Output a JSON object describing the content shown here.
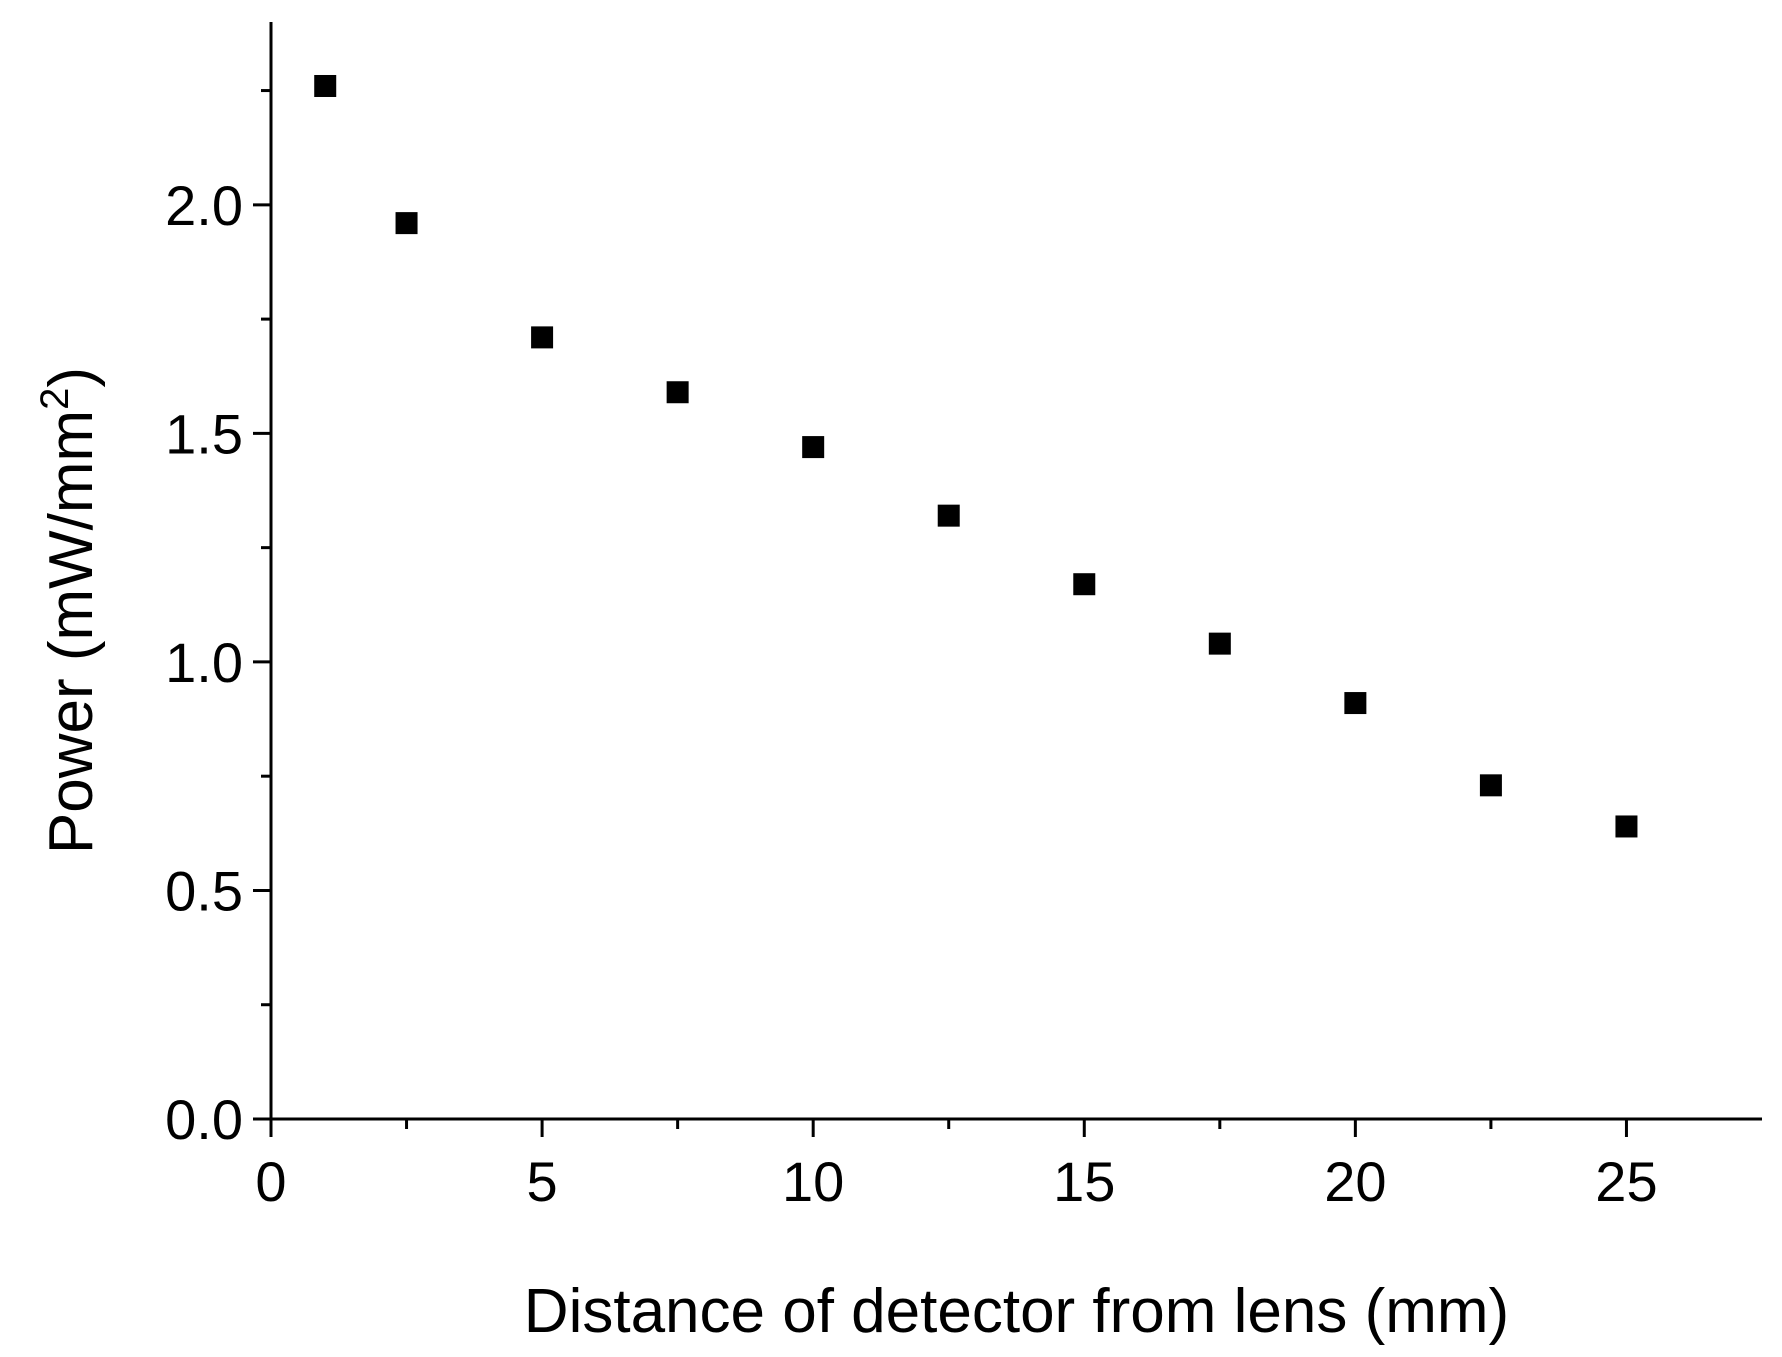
{
  "chart_data": {
    "type": "scatter",
    "title": "",
    "xlabel": "Distance of detector from lens (mm)",
    "ylabel": "Power (mW/mm",
    "ylabel_superscript": "2",
    "ylabel_suffix": ")",
    "xlim": [
      0,
      27.5
    ],
    "ylim": [
      0,
      2.4
    ],
    "x_major_ticks": [
      0,
      5,
      10,
      15,
      20,
      25
    ],
    "x_minor_ticks": [
      2.5,
      7.5,
      12.5,
      17.5,
      22.5
    ],
    "x_tick_labels": [
      "0",
      "5",
      "10",
      "15",
      "20",
      "25"
    ],
    "y_major_ticks": [
      0.0,
      0.5,
      1.0,
      1.5,
      2.0
    ],
    "y_minor_ticks": [
      0.25,
      0.75,
      1.25,
      1.75,
      2.25
    ],
    "y_tick_labels": [
      "0.0",
      "0.5",
      "1.0",
      "1.5",
      "2.0"
    ],
    "grid": false,
    "marker": "square",
    "marker_color": "#000000",
    "series": [
      {
        "x": [
          1,
          2.5,
          5,
          7.5,
          10,
          12.5,
          15,
          17.5,
          20,
          22.5,
          25
        ],
        "y": [
          2.26,
          1.96,
          1.71,
          1.59,
          1.47,
          1.32,
          1.17,
          1.04,
          0.91,
          0.73,
          0.64
        ]
      }
    ]
  }
}
